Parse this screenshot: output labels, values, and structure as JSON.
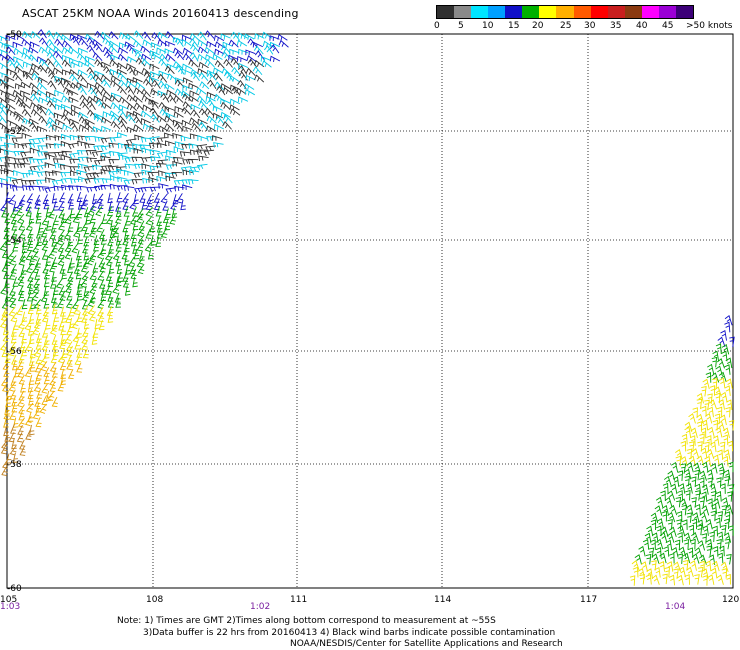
{
  "title": "ASCAT 25KM NOAA Winds 20160413 descending",
  "legend": {
    "labels": [
      "0",
      "5",
      "10",
      "15",
      "20",
      "25",
      "30",
      "35",
      "40",
      "45",
      ">50 knots"
    ],
    "colors": [
      "#303030",
      "#7f7f7f",
      "#00e5ff",
      "#00a0ff",
      "#1010c8",
      "#00b000",
      "#ffff00",
      "#ffb000",
      "#ff5a00",
      "#ff0000",
      "#c81e1e",
      "#8b3a10",
      "#ff00ff",
      "#9b00d6",
      "#3c0078"
    ]
  },
  "axes": {
    "lat_labels": [
      "-50",
      "-52",
      "-54",
      "-56",
      "-58",
      "-60"
    ],
    "lon_labels": [
      "105",
      "108",
      "111",
      "114",
      "117",
      "120"
    ],
    "time_labels": [
      "1:03",
      "1:02",
      "1:04"
    ]
  },
  "notes": {
    "line1": "Note: 1) Times are GMT 2)Times along bottom correspond to measurement at ~55S",
    "line2": "3)Data buffer is 22 hrs from 20160413 4) Black wind barbs indicate possible contamination",
    "line3": "NOAA/NESDIS/Center for Satellite Applications and Research"
  }
}
